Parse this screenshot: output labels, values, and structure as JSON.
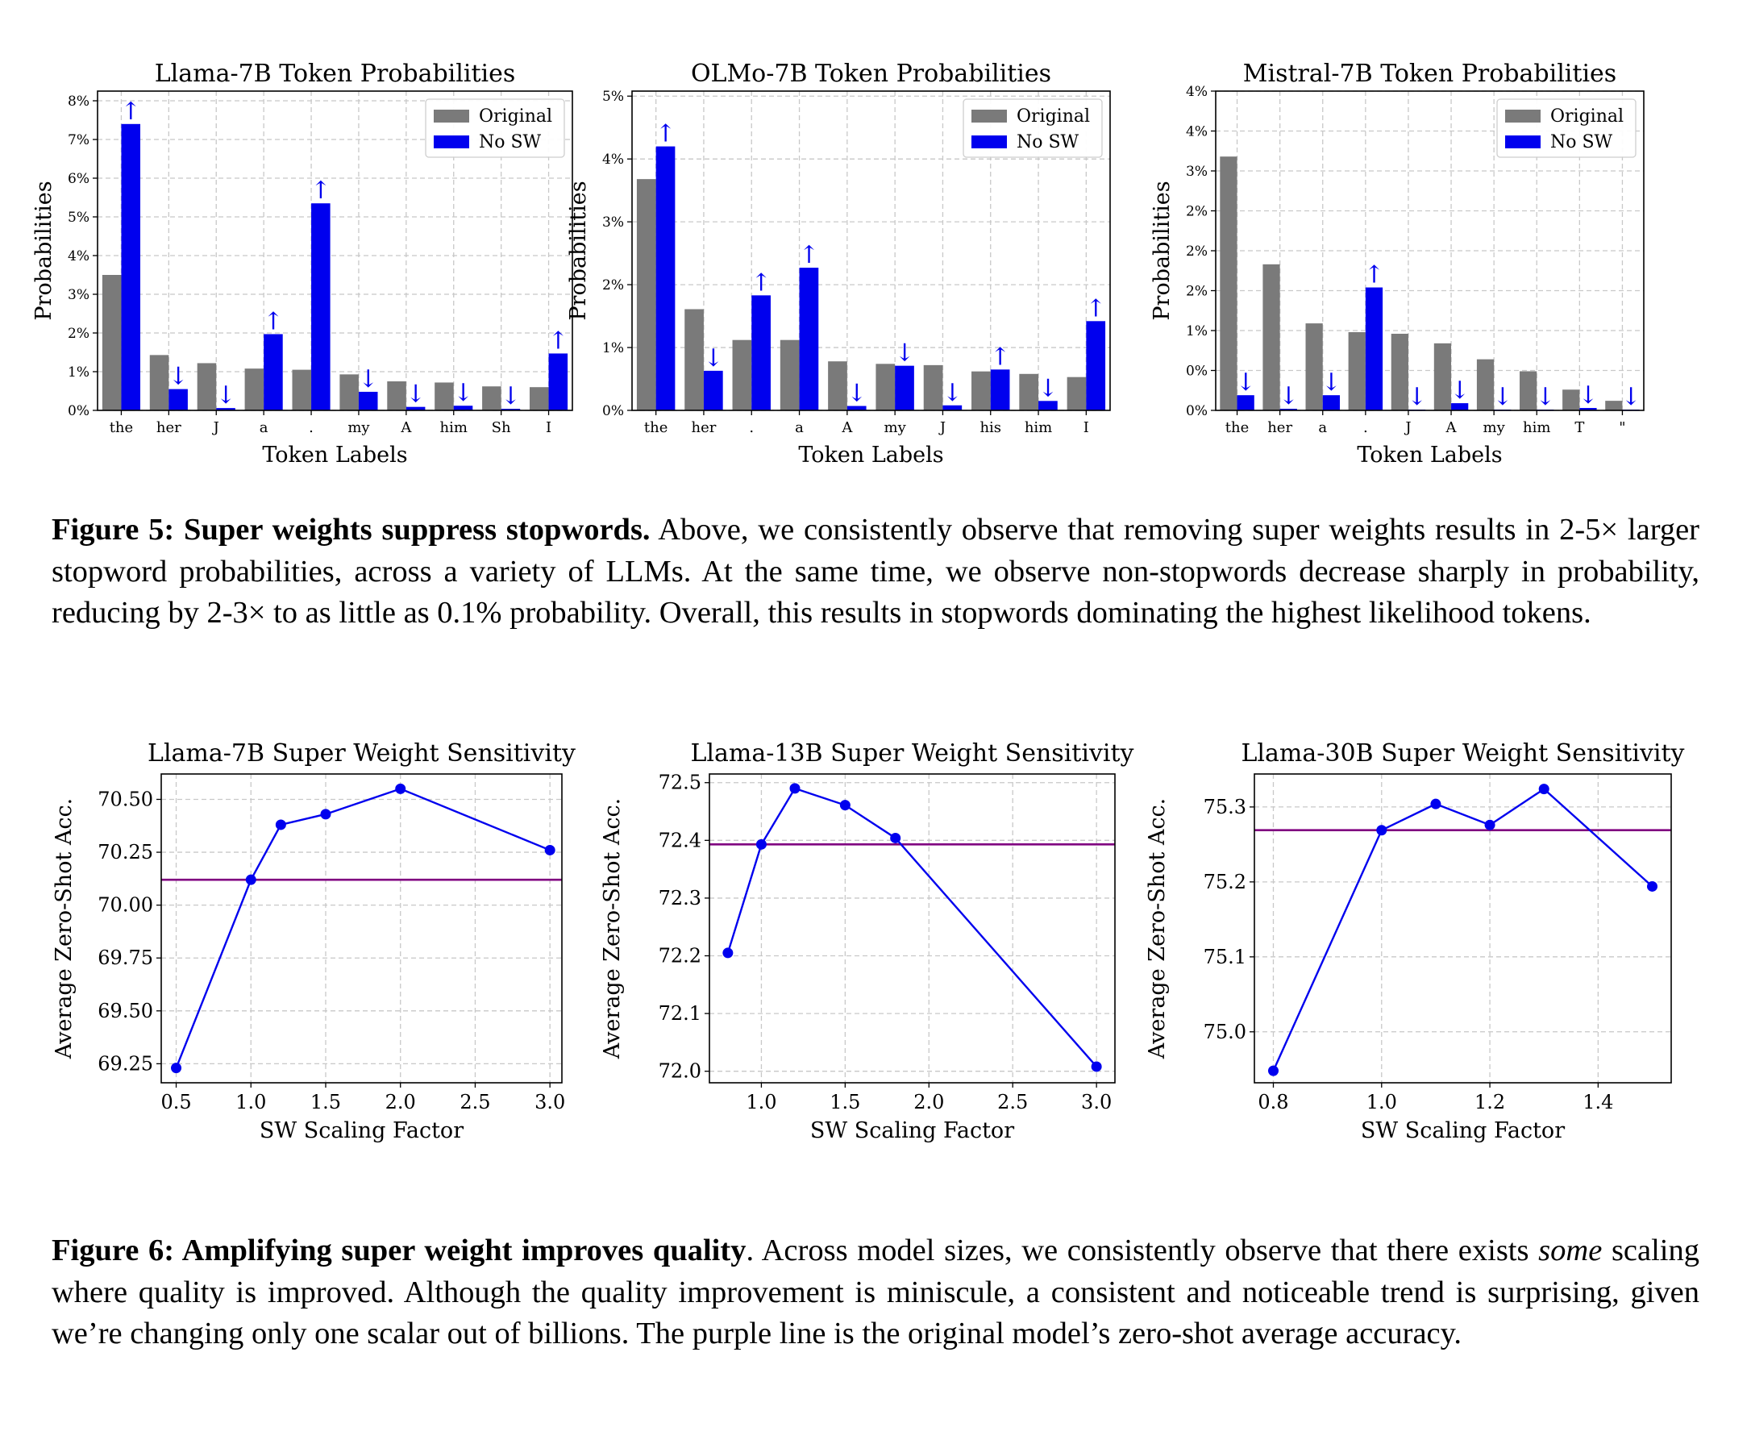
{
  "figure5": {
    "caption": {
      "label": "Figure 5: Super weights suppress stopwords.",
      "text": " Above, we consistently observe that removing super weights results in 2-5× larger stopword probabilities, across a variety of LLMs. At the same time, we observe non-stopwords decrease sharply in probability, reducing by 2-3× to as little as 0.1% probability. Overall, this results in stopwords dominating the highest likelihood tokens."
    }
  },
  "figure6": {
    "caption": {
      "label": "Figure 6: Amplifying super weight improves quality",
      "text_1": ". Across model sizes, we consistently observe that there exists ",
      "emphasis": "some",
      "text_2": " scaling where quality is improved. Although the quality improvement is miniscule, a consistent and noticeable trend is surprising, given we’re changing only one scalar out of billions. The purple line is the original model’s zero-shot average accuracy."
    }
  },
  "colors": {
    "original": "#7a7a7a",
    "no_sw": "#0000ee",
    "line": "#0000ee",
    "baseline": "#800080",
    "grid": "#c8c8c8"
  },
  "chart_data": [
    {
      "type": "bar",
      "title": "Llama-7B Token Probabilities",
      "xlabel": "Token Labels",
      "ylabel": "Probabilities",
      "ylim": [
        0,
        0.0825
      ],
      "yticks": [
        0,
        0.01,
        0.02,
        0.03,
        0.04,
        0.05,
        0.06,
        0.07,
        0.08
      ],
      "ytick_labels": [
        "0%",
        "1%",
        "2%",
        "3%",
        "4%",
        "5%",
        "6%",
        "7%",
        "8%"
      ],
      "categories": [
        "the",
        "her",
        "J",
        "a",
        ".",
        "my",
        "A",
        "him",
        "Sh",
        "I"
      ],
      "series": [
        {
          "name": "Original",
          "values": [
            0.035,
            0.0143,
            0.0122,
            0.0108,
            0.0105,
            0.0093,
            0.0075,
            0.0072,
            0.0062,
            0.006
          ]
        },
        {
          "name": "No SW",
          "values": [
            0.074,
            0.0055,
            0.0006,
            0.0197,
            0.0535,
            0.0048,
            0.0009,
            0.0012,
            0.0004,
            0.0147
          ]
        }
      ],
      "arrows": [
        "↑",
        "↓",
        "↓",
        "↑",
        "↑",
        "↓",
        "↓",
        "↓",
        "↓",
        "↑"
      ],
      "legend": "top-right",
      "grid": true
    },
    {
      "type": "bar",
      "title": "OLMo-7B Token Probabilities",
      "xlabel": "Token Labels",
      "ylabel": "Probabilities",
      "ylim": [
        0,
        0.0508
      ],
      "yticks": [
        0,
        0.01,
        0.02,
        0.03,
        0.04,
        0.05
      ],
      "ytick_labels": [
        "0%",
        "1%",
        "2%",
        "3%",
        "4%",
        "5%"
      ],
      "categories": [
        "the",
        "her",
        ".",
        "a",
        "A",
        "my",
        "J",
        "his",
        "him",
        "I"
      ],
      "series": [
        {
          "name": "Original",
          "values": [
            0.0368,
            0.0161,
            0.0112,
            0.0112,
            0.0078,
            0.0074,
            0.0072,
            0.0062,
            0.0058,
            0.0053
          ]
        },
        {
          "name": "No SW",
          "values": [
            0.042,
            0.0063,
            0.0183,
            0.0227,
            0.0007,
            0.0071,
            0.0008,
            0.0065,
            0.0015,
            0.0142
          ]
        }
      ],
      "arrows": [
        "↑",
        "↓",
        "↑",
        "↑",
        "↓",
        "↓",
        "↓",
        "↑",
        "↓",
        "↑"
      ],
      "legend": "top-right",
      "grid": true
    },
    {
      "type": "bar",
      "title": "Mistral-7B Token Probabilities",
      "xlabel": "Token Labels",
      "ylabel": "Probabilities",
      "ylim": [
        0,
        0.04
      ],
      "yticks": [
        0,
        0.005,
        0.01,
        0.015,
        0.02,
        0.025,
        0.03,
        0.035,
        0.04
      ],
      "ytick_labels": [
        "0%",
        "0%",
        "1%",
        "2%",
        "2%",
        "2%",
        "3%",
        "4%",
        "4%"
      ],
      "categories": [
        "the",
        "her",
        "a",
        ".",
        "J",
        "A",
        "my",
        "him",
        "T",
        "\""
      ],
      "series": [
        {
          "name": "Original",
          "values": [
            0.0318,
            0.0183,
            0.0109,
            0.0098,
            0.0096,
            0.0084,
            0.0064,
            0.0049,
            0.0026,
            0.0012
          ]
        },
        {
          "name": "No SW",
          "values": [
            0.0019,
            0.0002,
            0.0019,
            0.0154,
            0.0001,
            0.0009,
            0.0001,
            0.0001,
            0.0003,
            0.0001
          ]
        }
      ],
      "arrows": [
        "↓",
        "↓",
        "↓",
        "↑",
        "↓",
        "↓",
        "↓",
        "↓",
        "↓",
        "↓"
      ],
      "legend": "top-right",
      "grid": true
    },
    {
      "type": "line",
      "title": "Llama-7B Super Weight Sensitivity",
      "xlabel": "SW Scaling Factor",
      "ylabel": "Average Zero-Shot Acc.",
      "xlim": [
        0.4,
        3.08
      ],
      "ylim": [
        69.16,
        70.62
      ],
      "xticks": [
        0.5,
        1.0,
        1.5,
        2.0,
        2.5,
        3.0
      ],
      "xtick_labels": [
        "0.5",
        "1.0",
        "1.5",
        "2.0",
        "2.5",
        "3.0"
      ],
      "yticks": [
        69.25,
        69.5,
        69.75,
        70.0,
        70.25,
        70.5
      ],
      "ytick_labels": [
        "69.25",
        "69.50",
        "69.75",
        "70.00",
        "70.25",
        "70.50"
      ],
      "x": [
        0.5,
        1.0,
        1.2,
        1.5,
        2.0,
        3.0
      ],
      "y": [
        69.23,
        70.12,
        70.38,
        70.43,
        70.55,
        70.26
      ],
      "baseline": 70.12,
      "grid": true
    },
    {
      "type": "line",
      "title": "Llama-13B Super Weight Sensitivity",
      "xlabel": "SW Scaling Factor",
      "ylabel": "Average Zero-Shot Acc.",
      "xlim": [
        0.69,
        3.11
      ],
      "ylim": [
        71.98,
        72.515
      ],
      "xticks": [
        1.0,
        1.5,
        2.0,
        2.5,
        3.0
      ],
      "xtick_labels": [
        "1.0",
        "1.5",
        "2.0",
        "2.5",
        "3.0"
      ],
      "yticks": [
        72.0,
        72.1,
        72.2,
        72.3,
        72.4,
        72.5
      ],
      "ytick_labels": [
        "72.0",
        "72.1",
        "72.2",
        "72.3",
        "72.4",
        "72.5"
      ],
      "x": [
        0.8,
        1.0,
        1.2,
        1.5,
        1.8,
        3.0
      ],
      "y": [
        72.205,
        72.393,
        72.49,
        72.461,
        72.404,
        72.008
      ],
      "baseline": 72.393,
      "grid": true
    },
    {
      "type": "line",
      "title": "Llama-30B Super Weight Sensitivity",
      "xlabel": "SW Scaling Factor",
      "ylabel": "Average Zero-Shot Acc.",
      "xlim": [
        0.765,
        1.535
      ],
      "ylim": [
        74.932,
        75.344
      ],
      "xticks": [
        0.8,
        1.0,
        1.2,
        1.4
      ],
      "xtick_labels": [
        "0.8",
        "1.0",
        "1.2",
        "1.4"
      ],
      "yticks": [
        75.0,
        75.1,
        75.2,
        75.3
      ],
      "ytick_labels": [
        "75.0",
        "75.1",
        "75.2",
        "75.3"
      ],
      "x": [
        0.8,
        1.0,
        1.1,
        1.2,
        1.3,
        1.5
      ],
      "y": [
        74.948,
        75.269,
        75.304,
        75.276,
        75.324,
        75.194
      ],
      "baseline": 75.269,
      "grid": true
    }
  ]
}
